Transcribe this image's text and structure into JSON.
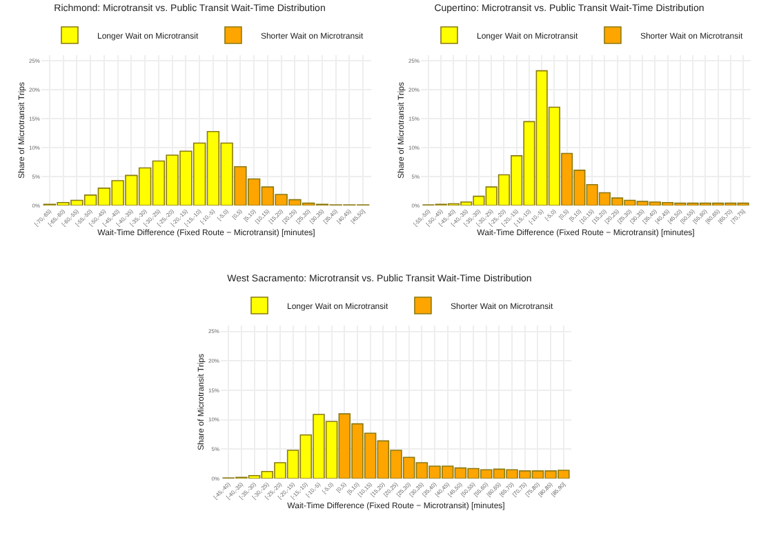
{
  "chart_data": [
    {
      "type": "bar",
      "title": "Richmond: Microtransit vs. Public Transit Wait-Time Distribution",
      "xlabel": "Wait-Time Difference (Fixed Route − Microtransit) [minutes]",
      "ylabel": "Share of Microtransit Trips",
      "categories": [
        "[-70,-65)",
        "[-65,-60)",
        "[-60,-55)",
        "[-55,-50)",
        "[-50,-45)",
        "[-45,-40)",
        "[-40,-35)",
        "[-35,-30)",
        "[-30,-25)",
        "[-25,-20)",
        "[-20,-15)",
        "[-15,-10)",
        "[-10,-5)",
        "[-5,0)",
        "[0,5)",
        "[5,10)",
        "[10,15)",
        "[15,20)",
        "[20,25)",
        "[25,30)",
        "[30,35)",
        "[35,40)",
        "[40,45)",
        "[45,50]"
      ],
      "series": [
        {
          "name": "Longer Wait on Microtransit",
          "color": "#ffff00",
          "values": [
            0.2,
            0.5,
            0.9,
            1.8,
            3.0,
            4.3,
            5.2,
            6.5,
            7.7,
            8.7,
            9.4,
            10.8,
            12.8,
            10.8,
            null,
            null,
            null,
            null,
            null,
            null,
            null,
            null,
            null,
            null
          ]
        },
        {
          "name": "Shorter Wait on Microtransit",
          "color": "#ffa500",
          "values": [
            null,
            null,
            null,
            null,
            null,
            null,
            null,
            null,
            null,
            null,
            null,
            null,
            null,
            null,
            6.7,
            4.6,
            3.2,
            1.9,
            1.0,
            0.4,
            0.2,
            0.1,
            0.1,
            0.1
          ]
        }
      ],
      "ylim": [
        0,
        26
      ],
      "yticks": [
        {
          "value": 0,
          "label": "0%"
        },
        {
          "value": 5,
          "label": "5%"
        },
        {
          "value": 10,
          "label": "10%"
        },
        {
          "value": 15,
          "label": "15%"
        },
        {
          "value": 20,
          "label": "20%"
        },
        {
          "value": 25,
          "label": "25%"
        }
      ],
      "grid": true,
      "legend": "top"
    },
    {
      "type": "bar",
      "title": "Cupertino: Microtransit vs. Public Transit Wait-Time Distribution",
      "xlabel": "Wait-Time Difference (Fixed Route − Microtransit) [minutes]",
      "ylabel": "Share of Microtransit Trips",
      "categories": [
        "[-55,-50)",
        "[-50,-45)",
        "[-45,-40)",
        "[-40,-35)",
        "[-35,-30)",
        "[-30,-25)",
        "[-25,-20)",
        "[-20,-15)",
        "[-15,-10)",
        "[-10,-5)",
        "[-5,0)",
        "[0,5)",
        "[5,10)",
        "[10,15)",
        "[15,20)",
        "[20,25)",
        "[25,30)",
        "[30,35)",
        "[35,40)",
        "[40,45)",
        "[45,50)",
        "[50,55)",
        "[55,60)",
        "[60,65)",
        "[65,70)",
        "[70,75]"
      ],
      "series": [
        {
          "name": "Longer Wait on Microtransit",
          "color": "#ffff00",
          "values": [
            0.1,
            0.2,
            0.3,
            0.6,
            1.6,
            3.2,
            5.3,
            8.6,
            14.5,
            23.3,
            17.0,
            null,
            null,
            null,
            null,
            null,
            null,
            null,
            null,
            null,
            null,
            null,
            null,
            null,
            null,
            null
          ]
        },
        {
          "name": "Shorter Wait on Microtransit",
          "color": "#ffa500",
          "values": [
            null,
            null,
            null,
            null,
            null,
            null,
            null,
            null,
            null,
            null,
            null,
            9.0,
            6.1,
            3.6,
            2.2,
            1.3,
            0.9,
            0.7,
            0.6,
            0.5,
            0.4,
            0.4,
            0.4,
            0.4,
            0.4,
            0.4
          ]
        }
      ],
      "ylim": [
        0,
        26
      ],
      "yticks": [
        {
          "value": 0,
          "label": "0%"
        },
        {
          "value": 5,
          "label": "5%"
        },
        {
          "value": 10,
          "label": "10%"
        },
        {
          "value": 15,
          "label": "15%"
        },
        {
          "value": 20,
          "label": "20%"
        },
        {
          "value": 25,
          "label": "25%"
        }
      ],
      "grid": true,
      "legend": "top"
    },
    {
      "type": "bar",
      "title": "West Sacramento: Microtransit vs. Public Transit Wait-Time Distribution",
      "xlabel": "Wait-Time Difference (Fixed Route − Microtransit) [minutes]",
      "ylabel": "Share of Microtransit Trips",
      "categories": [
        "[-45,-40)",
        "[-40,-35)",
        "[-35,-30)",
        "[-30,-25)",
        "[-25,-20)",
        "[-20,-15)",
        "[-15,-10)",
        "[-10,-5)",
        "[-5,0)",
        "[0,5)",
        "[5,10)",
        "[10,15)",
        "[15,20)",
        "[20,25)",
        "[25,30)",
        "[30,35)",
        "[35,40)",
        "[40,45)",
        "[45,50)",
        "[50,55)",
        "[55,60)",
        "[60,65)",
        "[65,70)",
        "[70,75)",
        "[75,80)",
        "[80,85)",
        "[85,90]"
      ],
      "series": [
        {
          "name": "Longer Wait on Microtransit",
          "color": "#ffff00",
          "values": [
            0.1,
            0.2,
            0.5,
            1.2,
            2.7,
            4.8,
            7.4,
            10.9,
            9.7,
            null,
            null,
            null,
            null,
            null,
            null,
            null,
            null,
            null,
            null,
            null,
            null,
            null,
            null,
            null,
            null,
            null,
            null
          ]
        },
        {
          "name": "Shorter Wait on Microtransit",
          "color": "#ffa500",
          "values": [
            null,
            null,
            null,
            null,
            null,
            null,
            null,
            null,
            null,
            11.0,
            9.3,
            7.7,
            6.4,
            4.8,
            3.6,
            2.7,
            2.1,
            2.1,
            1.8,
            1.7,
            1.5,
            1.6,
            1.5,
            1.3,
            1.3,
            1.3,
            1.4
          ]
        }
      ],
      "ylim": [
        0,
        26
      ],
      "yticks": [
        {
          "value": 0,
          "label": "0%"
        },
        {
          "value": 5,
          "label": "5%"
        },
        {
          "value": 10,
          "label": "10%"
        },
        {
          "value": 15,
          "label": "15%"
        },
        {
          "value": 20,
          "label": "20%"
        },
        {
          "value": 25,
          "label": "25%"
        }
      ],
      "grid": true,
      "legend": "top"
    }
  ]
}
